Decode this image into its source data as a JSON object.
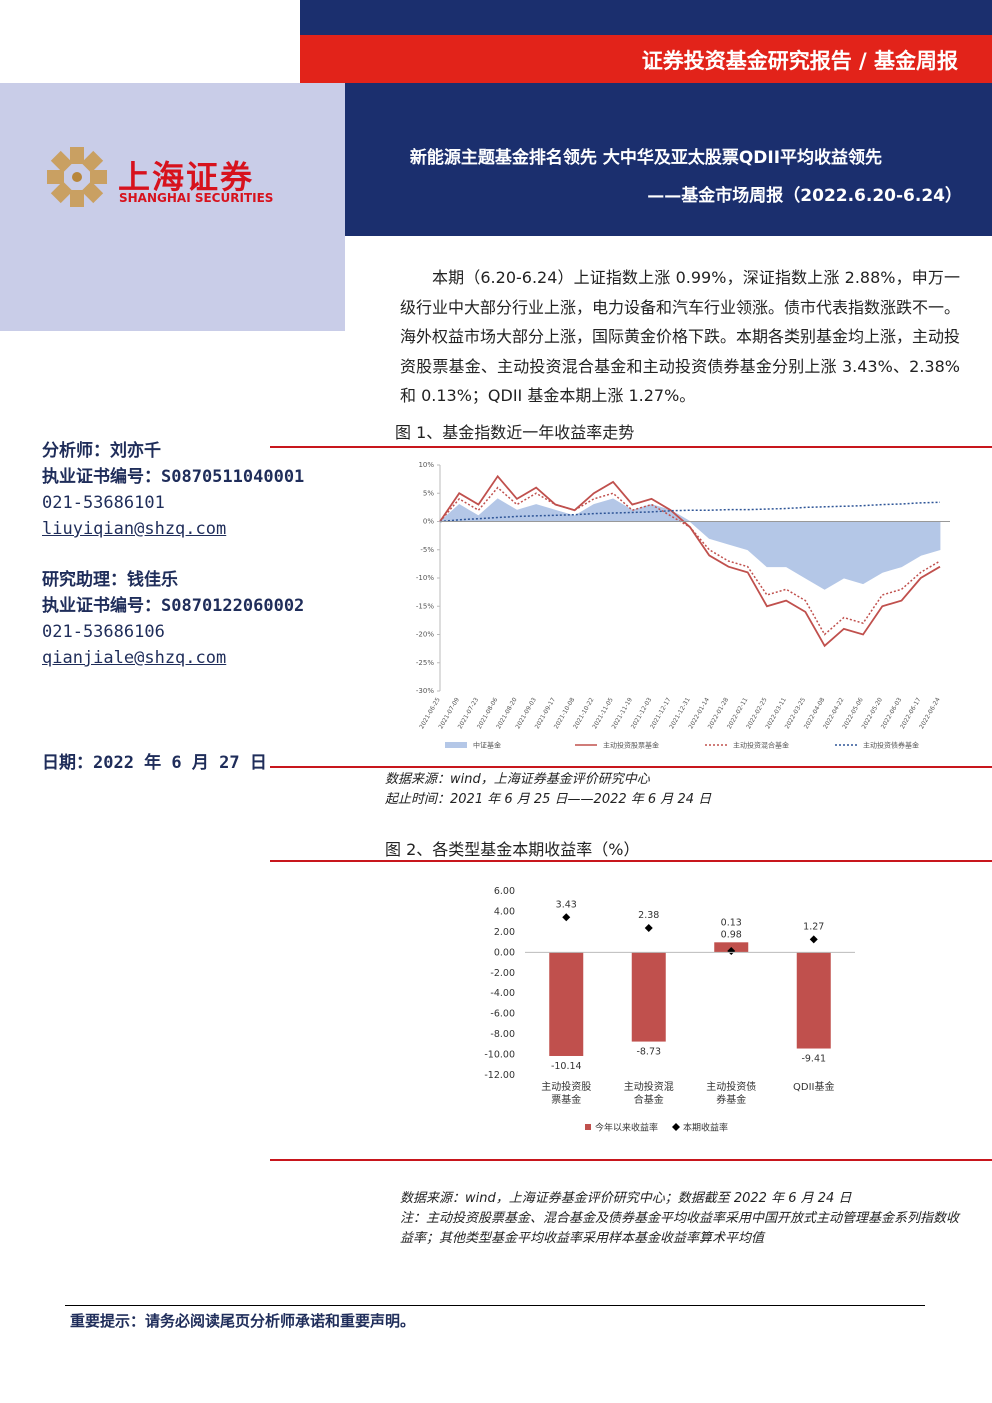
{
  "header": {
    "report_type": "证券投资基金研究报告 / 基金周报",
    "title": "新能源主题基金排名领先 大中华及亚太股票QDII平均收益领先",
    "subtitle": "——基金市场周报（2022.6.20-6.24）"
  },
  "logo": {
    "name_cn": "上海证券",
    "name_en": "SHANGHAI SECURITIES"
  },
  "analysts": [
    {
      "role": "分析师：刘亦千",
      "license": "执业证书编号：S0870511040001",
      "phone": "021-53686101",
      "email": "liuyiqian@shzq.com"
    },
    {
      "role": "研究助理：钱佳乐",
      "license": "执业证书编号：S0870122060002",
      "phone": "021-53686106",
      "email": "qianjiale@shzq.com"
    }
  ],
  "date": "日期：2022 年 6 月 27 日",
  "summary": "本期（6.20-6.24）上证指数上涨 0.99%，深证指数上涨 2.88%，申万一级行业中大部分行业上涨，电力设备和汽车行业领涨。债市代表指数涨跌不一。海外权益市场大部分上涨，国际黄金价格下跌。本期各类别基金均上涨，主动投资股票基金、主动投资混合基金和主动投资债券基金分别上涨 3.43%、2.38%和 0.13%；QDII 基金本期上涨 1.27%。",
  "figure1": {
    "source": "数据来源：wind，上海证券基金评价研究中心",
    "period": "起止时间：2021 年 6 月 25 日——2022 年 6 月 24 日"
  },
  "figure2": {
    "source": "数据来源：wind，上海证券基金评价研究中心；数据截至 2022 年 6 月 24 日",
    "note": "注：主动投资股票基金、混合基金及债券基金平均收益率采用中国开放式主动管理基金系列指数收益率；其他类型基金平均收益率采用样本基金收益率算术平均值"
  },
  "footer": "重要提示：请务必阅读尾页分析师承诺和重要声明。",
  "chart_data": [
    {
      "type": "line",
      "title": "图 1、基金指数近一年收益率走势",
      "x": [
        "2021-06-25",
        "2021-07-09",
        "2021-07-23",
        "2021-08-06",
        "2021-08-20",
        "2021-09-03",
        "2021-09-17",
        "2021-10-08",
        "2021-10-22",
        "2021-11-05",
        "2021-11-19",
        "2021-12-03",
        "2021-12-17",
        "2021-12-31",
        "2022-01-14",
        "2022-01-28",
        "2022-02-11",
        "2022-02-25",
        "2022-03-11",
        "2022-03-25",
        "2022-04-08",
        "2022-04-22",
        "2022-05-06",
        "2022-05-20",
        "2022-06-03",
        "2022-06-17",
        "2022-06-24"
      ],
      "ylim": [
        -30,
        10
      ],
      "yticks": [
        {
          "value": -30,
          "label": "-30%"
        },
        {
          "value": -25,
          "label": "-25%"
        },
        {
          "value": -20,
          "label": "-20%"
        },
        {
          "value": -15,
          "label": "-15%"
        },
        {
          "value": -10,
          "label": "-10%"
        },
        {
          "value": -5,
          "label": "-5%"
        },
        {
          "value": 0,
          "label": "0%"
        },
        {
          "value": 5,
          "label": "5%"
        },
        {
          "value": 10,
          "label": "10%"
        }
      ],
      "series": [
        {
          "name": "中证基金",
          "color": "#b4c7e7",
          "style": "area",
          "values": [
            0,
            3,
            1,
            4,
            2,
            3,
            2,
            1,
            3,
            4,
            2,
            3,
            2,
            0,
            -3,
            -4,
            -5,
            -8,
            -8,
            -10,
            -12,
            -10,
            -11,
            -9,
            -8,
            -6,
            -5
          ]
        },
        {
          "name": "主动投资股票基金",
          "color": "#c0504d",
          "style": "solid",
          "values": [
            0,
            5,
            3,
            8,
            4,
            6,
            3,
            2,
            5,
            7,
            3,
            4,
            2,
            -1,
            -6,
            -8,
            -9,
            -15,
            -14,
            -16,
            -22,
            -19,
            -20,
            -15,
            -14,
            -10,
            -8
          ]
        },
        {
          "name": "主动投资混合基金",
          "color": "#c0504d",
          "style": "dotted",
          "values": [
            0,
            4,
            2,
            6,
            3,
            5,
            3,
            2,
            4,
            5,
            2,
            3,
            1,
            -1,
            -5,
            -7,
            -8,
            -13,
            -12,
            -14,
            -20,
            -17,
            -18,
            -13,
            -12,
            -9,
            -7
          ]
        },
        {
          "name": "主动投资债券基金",
          "color": "#2e5597",
          "style": "dotted",
          "values": [
            0,
            0.3,
            0.5,
            0.7,
            0.9,
            1.0,
            1.1,
            1.2,
            1.4,
            1.5,
            1.6,
            1.7,
            1.9,
            2.0,
            2.0,
            2.1,
            2.1,
            2.2,
            2.3,
            2.5,
            2.6,
            2.7,
            2.8,
            3.0,
            3.1,
            3.3,
            3.4
          ]
        }
      ]
    },
    {
      "type": "bar",
      "title": "图 2、各类型基金本期收益率（%）",
      "categories": [
        "主动投资股票基金",
        "主动投资混合基金",
        "主动投资债券基金",
        "QDII基金"
      ],
      "ylim": [
        -12,
        6
      ],
      "yticks": [
        {
          "value": -12,
          "label": "-12.00"
        },
        {
          "value": -10,
          "label": "-10.00"
        },
        {
          "value": -8,
          "label": "-8.00"
        },
        {
          "value": -6,
          "label": "-6.00"
        },
        {
          "value": -4,
          "label": "-4.00"
        },
        {
          "value": -2,
          "label": "-2.00"
        },
        {
          "value": 0,
          "label": "0.00"
        },
        {
          "value": 2,
          "label": "2.00"
        },
        {
          "value": 4,
          "label": "4.00"
        },
        {
          "value": 6,
          "label": "6.00"
        }
      ],
      "series": [
        {
          "name": "今年以来收益率",
          "color": "#c0504d",
          "marker": "bar",
          "values": [
            -10.14,
            -8.73,
            0.98,
            -9.41
          ]
        },
        {
          "name": "本期收益率",
          "color": "#000000",
          "marker": "diamond",
          "values": [
            3.43,
            2.38,
            0.13,
            1.27
          ]
        }
      ]
    }
  ]
}
